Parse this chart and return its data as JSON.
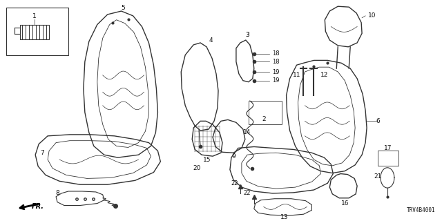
{
  "diagram_code": "TRV4B4001",
  "bg_color": "#ffffff",
  "line_color": "#333333",
  "fig_width": 6.4,
  "fig_height": 3.2,
  "dpi": 100
}
